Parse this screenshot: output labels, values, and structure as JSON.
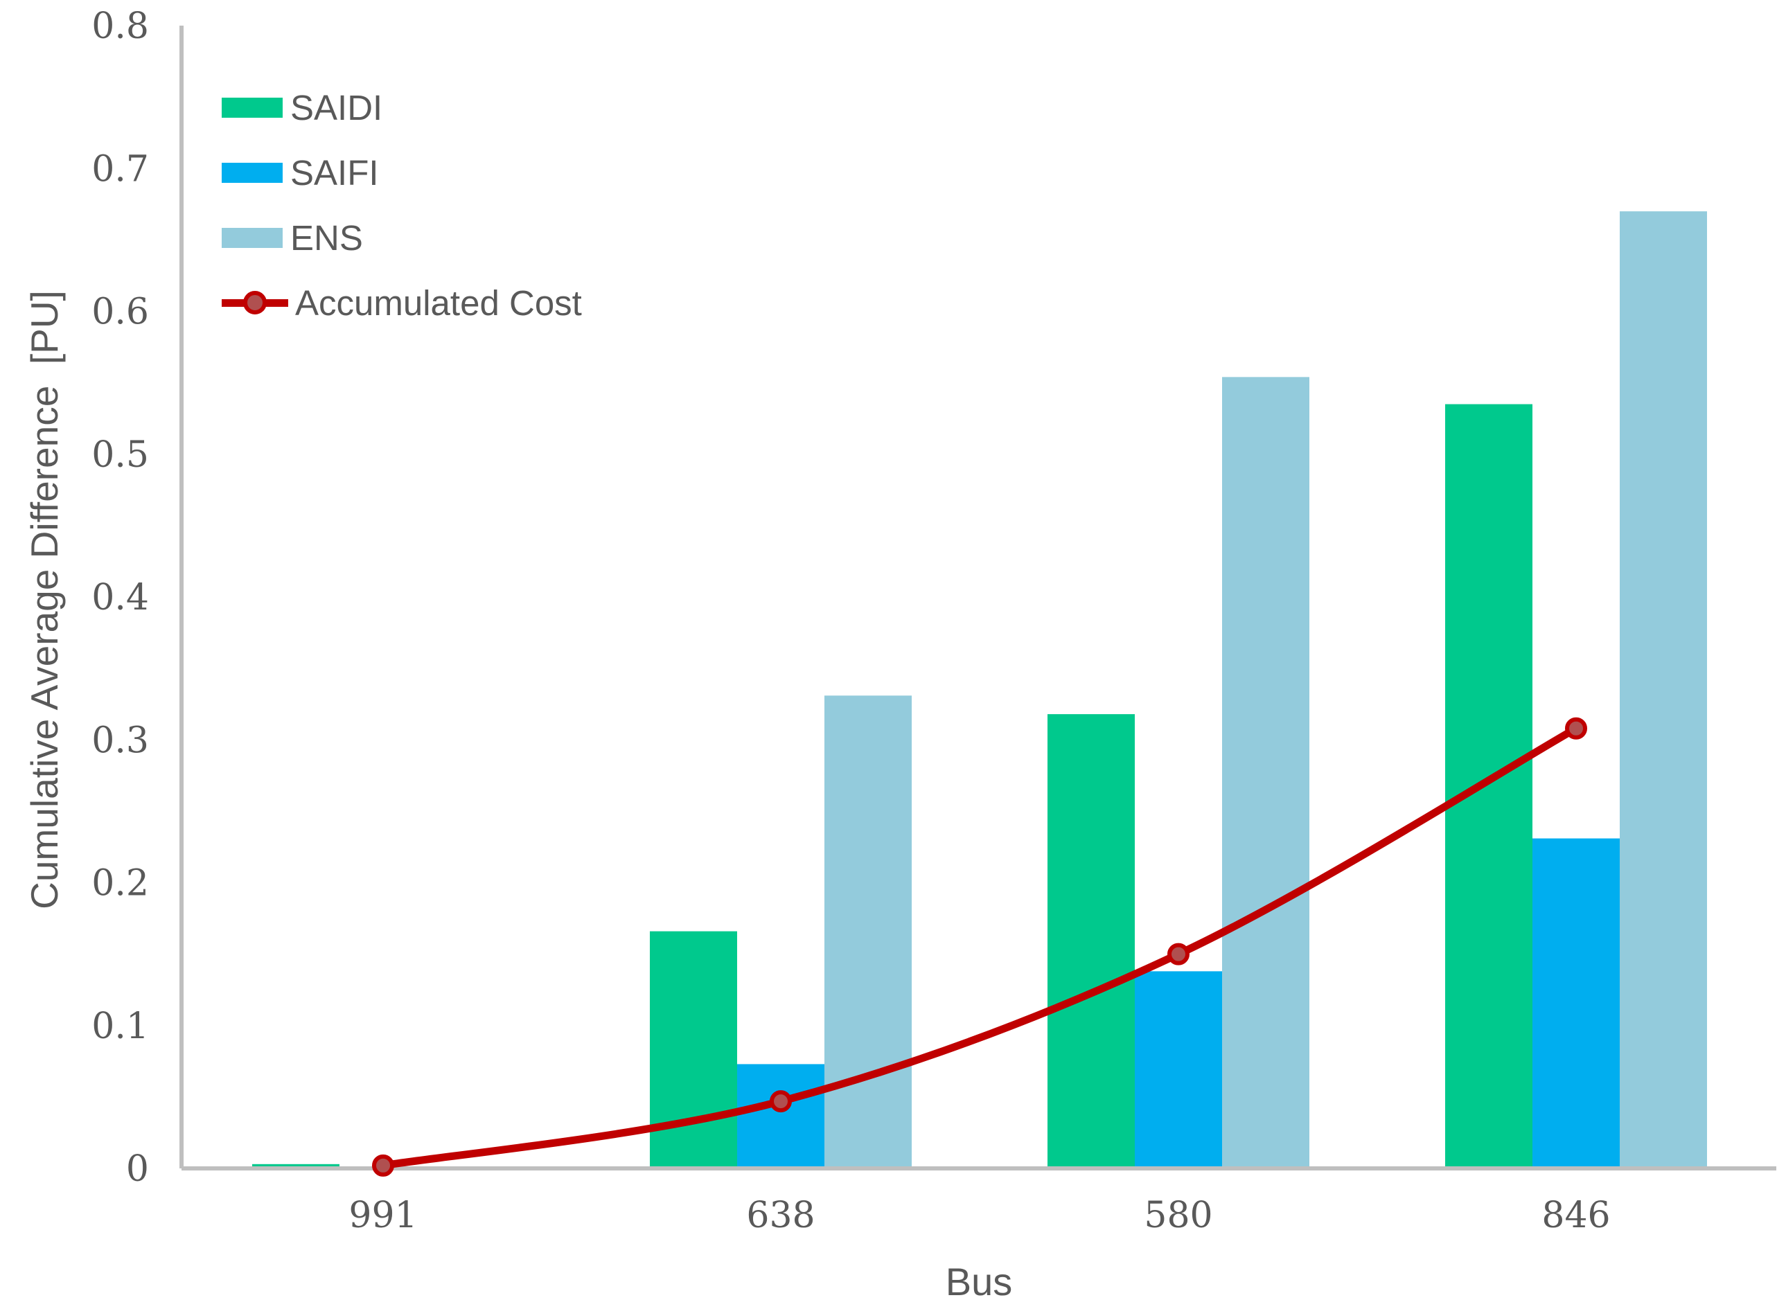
{
  "chart_data": {
    "type": "bar+line",
    "xlabel": "Bus",
    "ylabel": "Cumulative Average Difference  [PU]",
    "categories": [
      "991",
      "638",
      "580",
      "846"
    ],
    "series": [
      {
        "name": "SAIDI",
        "color": "#00C98D",
        "values": [
          0.003,
          0.166,
          0.318,
          0.535
        ]
      },
      {
        "name": "SAIFI",
        "color": "#00AEEF",
        "values": [
          0,
          0.073,
          0.138,
          0.231
        ]
      },
      {
        "name": "ENS",
        "color": "#93CBDC",
        "values": [
          0,
          0.331,
          0.554,
          0.67
        ]
      }
    ],
    "line_series": {
      "name": "Accumulated Cost",
      "color": "#C00000",
      "marker_fill": "#B05050",
      "values": [
        0.002,
        0.047,
        0.15,
        0.308
      ]
    },
    "ylim": [
      0,
      0.8
    ],
    "yticks": [
      "0",
      "0.1",
      "0.2",
      "0.3",
      "0.4",
      "0.5",
      "0.6",
      "0.7",
      "0.8"
    ],
    "grid": false,
    "legend_position": "top-left-inside",
    "text_color": "#595959",
    "axis_color": "#BFBFBF"
  }
}
